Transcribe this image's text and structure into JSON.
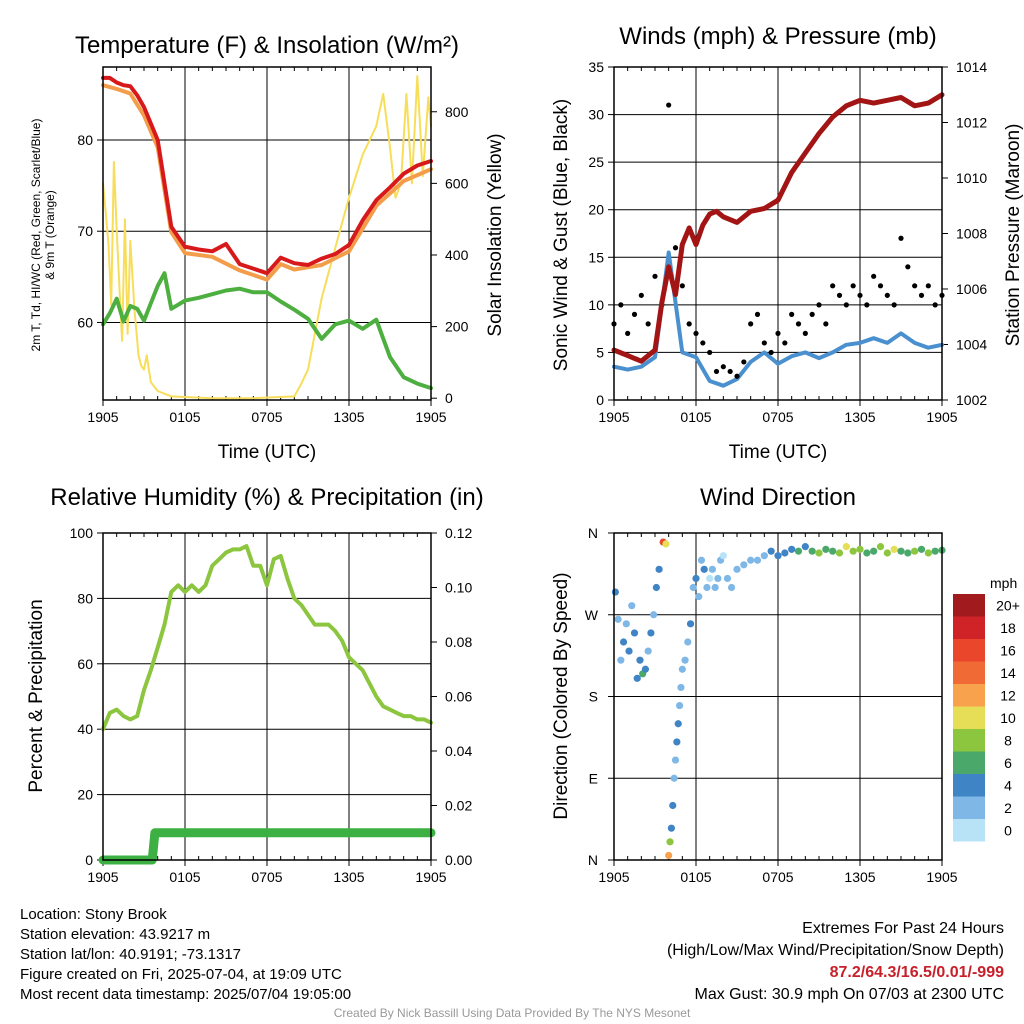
{
  "chart_data": [
    {
      "type": "line",
      "title": "Temperature (F) & Insolation (W/m²)",
      "xlabel": "Time (UTC)",
      "ylabel_left_line1": "2m T, Td, HI/WC (Red, Green, Scarlet/Blue)",
      "ylabel_left_line2": "& 9m T (Orange)",
      "ylabel_right": "Solar Insolation (Yellow)",
      "x_ticks": [
        "1905",
        "0105",
        "0705",
        "1305",
        "1905"
      ],
      "y_left_ticks": [
        60,
        70,
        80
      ],
      "y_left_range": [
        51.5,
        88
      ],
      "y_right_ticks": [
        0,
        200,
        400,
        600,
        800
      ],
      "y_right_range": [
        -5,
        925
      ],
      "grid": true,
      "colors": {
        "temp": "#d7191c",
        "hiwc": "#c0392b",
        "t9m": "#f39c4a",
        "dewpoint": "#4caf3f",
        "solar": "#f7de5a"
      },
      "series": [
        {
          "name": "2m T",
          "axis": "left",
          "color": "#d7191c",
          "x": [
            0,
            0.5,
            1,
            1.5,
            2,
            2.5,
            3,
            4,
            5,
            6,
            7,
            8,
            9,
            10,
            11,
            12,
            13,
            14,
            15,
            16,
            17,
            18,
            19,
            20,
            21,
            22,
            23,
            24
          ],
          "y": [
            86.8,
            86.8,
            86.3,
            86.0,
            85.9,
            84.9,
            83.6,
            80.0,
            70.5,
            68.3,
            68.0,
            67.8,
            68.6,
            66.4,
            65.9,
            65.4,
            67.1,
            66.5,
            66.3,
            67.0,
            67.5,
            68.5,
            71.2,
            73.4,
            74.8,
            76.3,
            77.2,
            77.7
          ]
        },
        {
          "name": "9m T",
          "axis": "left",
          "color": "#f39c4a",
          "x": [
            0,
            1,
            2,
            3,
            4,
            5,
            6,
            8,
            10,
            12,
            13,
            14,
            16,
            18,
            20,
            22,
            24
          ],
          "y": [
            86.0,
            85.6,
            85.1,
            82.7,
            79.2,
            69.9,
            67.6,
            67.2,
            65.7,
            64.7,
            66.4,
            65.8,
            66.3,
            67.8,
            72.8,
            75.5,
            76.8
          ]
        },
        {
          "name": "Dewpoint",
          "axis": "left",
          "color": "#4caf3f",
          "x": [
            0,
            0.5,
            1,
            1.5,
            2,
            2.5,
            3,
            3.5,
            4,
            4.5,
            5,
            6,
            7,
            8,
            9,
            10,
            11,
            12,
            13,
            14,
            15,
            16,
            17,
            18,
            19,
            20,
            21,
            22,
            23,
            24
          ],
          "y": [
            59.8,
            61.0,
            62.6,
            60.1,
            61.8,
            61.5,
            60.2,
            62.1,
            64.0,
            65.4,
            61.5,
            62.4,
            62.7,
            63.1,
            63.5,
            63.7,
            63.3,
            63.3,
            62.3,
            61.4,
            60.4,
            58.2,
            59.8,
            60.2,
            59.3,
            60.3,
            56.2,
            54.0,
            53.3,
            52.8
          ]
        },
        {
          "name": "Solar Insolation",
          "axis": "right",
          "color": "#f7de5a",
          "x": [
            0,
            0.2,
            0.4,
            0.6,
            0.8,
            1.0,
            1.2,
            1.4,
            1.6,
            1.8,
            2.0,
            2.3,
            2.6,
            2.8,
            3.0,
            3.2,
            3.5,
            4.0,
            5,
            8,
            11,
            14,
            14.5,
            15,
            16,
            17,
            18,
            19,
            20,
            20.5,
            21,
            21.4,
            21.8,
            22.2,
            22.6,
            23.0,
            23.4,
            23.8,
            24
          ],
          "y": [
            600,
            520,
            430,
            260,
            660,
            470,
            310,
            160,
            500,
            180,
            440,
            250,
            120,
            90,
            80,
            120,
            45,
            20,
            5,
            0,
            0,
            5,
            40,
            80,
            280,
            420,
            560,
            680,
            760,
            850,
            700,
            560,
            600,
            850,
            600,
            900,
            620,
            840,
            760
          ]
        }
      ]
    },
    {
      "type": "line",
      "title": "Winds (mph) & Pressure (mb)",
      "xlabel": "Time (UTC)",
      "ylabel_left": "Sonic Wind & Gust (Blue, Black)",
      "ylabel_right": "Station Pressure (Maroon)",
      "x_ticks": [
        "1905",
        "0105",
        "0705",
        "1305",
        "1905"
      ],
      "y_left_ticks": [
        0,
        5,
        10,
        15,
        20,
        25,
        30,
        35
      ],
      "y_left_range": [
        0,
        35
      ],
      "y_right_ticks": [
        1002,
        1004,
        1006,
        1008,
        1010,
        1012,
        1014
      ],
      "y_right_range": [
        1002,
        1014
      ],
      "grid": true,
      "colors": {
        "wind": "#4a90cf",
        "gust": "#000000",
        "pressure": "#a31515"
      },
      "series": [
        {
          "name": "Sonic Wind",
          "axis": "left",
          "color": "#4a90cf",
          "x": [
            0,
            1,
            2,
            3,
            4,
            5,
            6,
            7,
            8,
            9,
            10,
            11,
            12,
            13,
            14,
            15,
            16,
            17,
            18,
            19,
            20,
            21,
            22,
            23,
            24
          ],
          "y": [
            3.5,
            3.2,
            3.5,
            4.5,
            15.5,
            5.0,
            4.5,
            2.0,
            1.5,
            2.2,
            4.0,
            5.0,
            3.8,
            4.6,
            5.0,
            4.4,
            5.0,
            5.8,
            6.0,
            6.5,
            6.0,
            7.0,
            6.0,
            5.5,
            5.8
          ]
        },
        {
          "name": "Gust",
          "axis": "left",
          "color": "#000000",
          "x": [
            0,
            0.5,
            1,
            1.5,
            2,
            2.5,
            3,
            3.5,
            4,
            4.5,
            5,
            5.5,
            6,
            6.5,
            7,
            7.5,
            8,
            8.5,
            9,
            9.5,
            10,
            10.5,
            11,
            11.5,
            12,
            12.5,
            13,
            13.5,
            14,
            14.5,
            15,
            15.5,
            16,
            16.5,
            17,
            17.5,
            18,
            18.5,
            19,
            19.5,
            20,
            20.5,
            21,
            21.5,
            22,
            22.5,
            23,
            23.5,
            24
          ],
          "y": [
            8,
            10,
            7,
            9,
            11,
            8,
            13,
            10,
            31,
            16,
            12,
            8,
            7,
            6,
            5,
            3,
            3.5,
            3,
            2.5,
            4,
            8,
            9,
            6,
            5,
            7,
            6,
            9,
            8,
            7,
            9,
            10,
            8,
            12,
            11,
            10,
            12,
            11,
            10,
            13,
            12,
            11,
            10,
            17,
            14,
            12,
            11,
            12,
            10,
            11
          ]
        },
        {
          "name": "Station Pressure",
          "axis": "right",
          "color": "#a31515",
          "x": [
            0,
            1,
            2,
            3,
            3.5,
            4,
            4.5,
            5,
            5.5,
            6,
            6.5,
            7,
            7.5,
            8,
            9,
            10,
            11,
            12,
            13,
            14,
            15,
            16,
            17,
            18,
            19,
            20,
            21,
            22,
            23,
            24
          ],
          "y": [
            1003.8,
            1003.6,
            1003.4,
            1003.8,
            1005.5,
            1006.8,
            1005.8,
            1007.6,
            1008.2,
            1007.6,
            1008.3,
            1008.7,
            1008.8,
            1008.6,
            1008.4,
            1008.8,
            1008.9,
            1009.2,
            1010.2,
            1010.9,
            1011.6,
            1012.2,
            1012.6,
            1012.8,
            1012.7,
            1012.8,
            1012.9,
            1012.6,
            1012.7,
            1013.0
          ]
        }
      ]
    },
    {
      "type": "line",
      "title": "Relative Humidity (%) & Precipitation (in)",
      "xlabel": "",
      "ylabel_left": "Percent & Precipitation",
      "x_ticks": [
        "1905",
        "0105",
        "0705",
        "1305",
        "1905"
      ],
      "y_left_ticks": [
        0,
        20,
        40,
        60,
        80,
        100
      ],
      "y_left_range": [
        0,
        100
      ],
      "y_right_ticks": [
        "0.00",
        "0.02",
        "0.04",
        "0.06",
        "0.08",
        "0.10",
        "0.12"
      ],
      "y_right_range": [
        0,
        0.12
      ],
      "grid": true,
      "colors": {
        "rh": "#8cc63f",
        "precip": "#3cb043"
      },
      "series": [
        {
          "name": "Relative Humidity",
          "axis": "left",
          "color": "#8cc63f",
          "x": [
            0,
            0.5,
            1,
            1.5,
            2,
            2.5,
            3,
            3.5,
            4,
            4.5,
            5,
            5.5,
            6,
            6.5,
            7,
            7.5,
            8,
            8.5,
            9,
            9.5,
            10,
            10.5,
            11,
            11.5,
            12,
            12.5,
            13,
            13.5,
            14,
            14.5,
            15,
            15.5,
            16,
            16.5,
            17,
            17.5,
            18,
            18.5,
            19,
            19.5,
            20,
            20.5,
            21,
            21.5,
            22,
            22.5,
            23,
            23.5,
            24
          ],
          "y": [
            40,
            45,
            46,
            44,
            43,
            44,
            52,
            58,
            65,
            72,
            82,
            84,
            82,
            84,
            82,
            84,
            90,
            92,
            94,
            95,
            95,
            96,
            90,
            90,
            84,
            92,
            93,
            86,
            80,
            78,
            75,
            72,
            72,
            72,
            70,
            67,
            62,
            60,
            58,
            54,
            50,
            47,
            46,
            45,
            44,
            44,
            43,
            43,
            42
          ]
        },
        {
          "name": "Precipitation",
          "axis": "right",
          "color": "#3cb043",
          "x": [
            0,
            1,
            2,
            3,
            3.6,
            3.8,
            4,
            6,
            8,
            10,
            12,
            14,
            16,
            18,
            20,
            22,
            24
          ],
          "y": [
            0,
            0,
            0,
            0,
            0,
            0.01,
            0.01,
            0.01,
            0.01,
            0.01,
            0.01,
            0.01,
            0.01,
            0.01,
            0.01,
            0.01,
            0.01
          ]
        }
      ]
    },
    {
      "type": "scatter",
      "title": "Wind Direction",
      "ylabel": "Direction (Colored By Speed)",
      "x_ticks": [
        "1905",
        "0105",
        "0705",
        "1305",
        "1905"
      ],
      "y_ticks": [
        "N",
        "E",
        "S",
        "W",
        "N"
      ],
      "y_range": [
        0,
        360
      ],
      "grid": true,
      "legend": {
        "placement": "right",
        "title": "mph",
        "labels": [
          "20+",
          "18",
          "16",
          "14",
          "12",
          "10",
          "8",
          "6",
          "4",
          "2",
          "0"
        ],
        "colors": [
          "#a11a1e",
          "#cf2328",
          "#e9462c",
          "#f06a35",
          "#f9a24d",
          "#e6de57",
          "#8cc63f",
          "#4aa86a",
          "#3f84c4",
          "#7fb8e6",
          "#b8e3f7"
        ]
      },
      "points": {
        "x": [
          0.1,
          0.3,
          0.5,
          0.7,
          0.9,
          1.1,
          1.3,
          1.5,
          1.7,
          1.9,
          2.1,
          2.3,
          2.5,
          2.7,
          2.9,
          3.1,
          3.3,
          3.6,
          3.8,
          4.0,
          4.1,
          4.2,
          4.3,
          4.4,
          4.5,
          4.6,
          4.7,
          4.8,
          4.9,
          5.0,
          5.2,
          5.4,
          5.6,
          5.8,
          6.0,
          6.2,
          6.4,
          6.6,
          6.8,
          7.0,
          7.2,
          7.4,
          7.6,
          7.8,
          8.0,
          8.3,
          8.6,
          9.0,
          9.5,
          10,
          10.5,
          11,
          11.5,
          12,
          12.5,
          13,
          13.5,
          14,
          14.5,
          15,
          15.5,
          16,
          16.5,
          17,
          17.5,
          18,
          18.5,
          19,
          19.5,
          20,
          20.5,
          21,
          21.5,
          22,
          22.5,
          23,
          23.5,
          24
        ],
        "y": [
          295,
          265,
          220,
          240,
          260,
          230,
          280,
          250,
          200,
          220,
          205,
          210,
          230,
          250,
          270,
          300,
          320,
          350,
          348,
          5,
          20,
          35,
          60,
          90,
          110,
          130,
          150,
          170,
          190,
          210,
          220,
          240,
          260,
          300,
          310,
          290,
          330,
          320,
          300,
          310,
          320,
          300,
          310,
          330,
          335,
          310,
          300,
          320,
          325,
          330,
          330,
          335,
          340,
          335,
          338,
          342,
          340,
          345,
          340,
          338,
          342,
          340,
          338,
          345,
          340,
          342,
          338,
          340,
          345,
          338,
          342,
          340,
          338,
          340,
          342,
          338,
          340,
          341
        ],
        "speed": [
          4,
          3,
          2,
          4,
          2,
          4,
          3,
          4,
          5,
          4,
          6,
          4,
          3,
          4,
          3,
          4,
          4,
          17,
          11,
          12,
          8,
          4,
          4,
          3,
          2,
          4,
          4,
          3,
          3,
          2,
          2,
          2,
          4,
          2,
          4,
          3,
          3,
          4,
          2,
          1,
          2,
          2,
          3,
          2,
          1,
          2,
          3,
          2,
          2,
          2,
          3,
          3,
          4,
          5,
          5,
          4,
          6,
          5,
          6,
          8,
          7,
          6,
          8,
          10,
          9,
          8,
          6,
          7,
          9,
          8,
          10,
          6,
          7,
          9,
          7,
          8,
          6,
          6
        ]
      }
    }
  ],
  "info": {
    "location": "Location: Stony Brook",
    "elevation": "Station elevation: 43.9217 m",
    "latlon": "Station lat/lon: 40.9191; -73.1317",
    "created": "Figure created on Fri, 2025-07-04, at 19:09 UTC",
    "recent": "Most recent data timestamp: 2025/07/04 19:05:00"
  },
  "extremes": {
    "title": "Extremes For Past 24 Hours",
    "subtitle": "(High/Low/Max Wind/Precipitation/Snow Depth)",
    "values": "87.2/64.3/16.5/0.01/-999",
    "max_gust": "Max Gust: 30.9 mph On 07/03 at 2300 UTC"
  },
  "credit": "Created By Nick Bassill Using Data Provided By The NYS Mesonet"
}
